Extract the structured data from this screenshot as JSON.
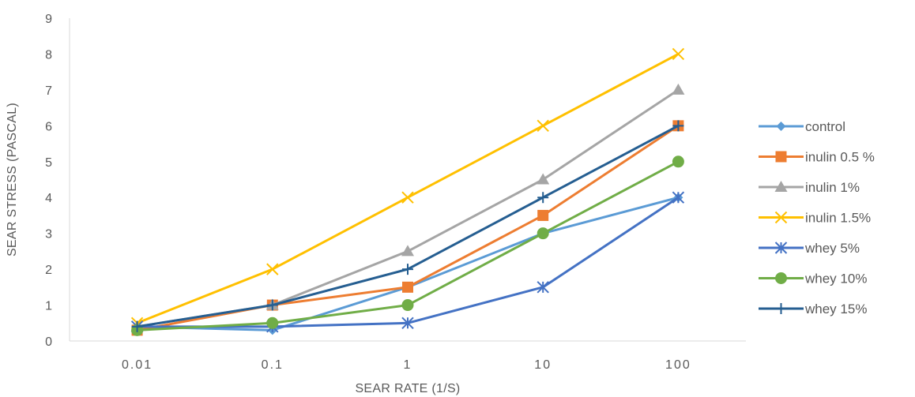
{
  "chart_data": {
    "type": "line",
    "title": "",
    "xlabel": "SEAR RATE (1/S)",
    "ylabel": "SEAR STRESS (PASCAL)",
    "categories": [
      "0.01",
      "0.1",
      "1",
      "10",
      "100"
    ],
    "ylim": [
      0,
      9
    ],
    "yticks": [
      0,
      1,
      2,
      3,
      4,
      5,
      6,
      7,
      8,
      9
    ],
    "grid": false,
    "legend_position": "right",
    "series": [
      {
        "name": "control",
        "color": "#5B9BD5",
        "marker": "diamond",
        "values": [
          0.4,
          0.3,
          1.5,
          3,
          4
        ]
      },
      {
        "name": "inulin 0.5 %",
        "color": "#ED7D31",
        "marker": "square",
        "values": [
          0.3,
          1,
          1.5,
          3.5,
          6
        ]
      },
      {
        "name": "inulin 1%",
        "color": "#A5A5A5",
        "marker": "triangle",
        "values": [
          0.4,
          1,
          2.5,
          4.5,
          7
        ]
      },
      {
        "name": "inulin 1.5%",
        "color": "#FFC000",
        "marker": "x",
        "values": [
          0.5,
          2,
          4,
          6,
          8
        ]
      },
      {
        "name": "whey 5%",
        "color": "#4472C4",
        "marker": "star",
        "values": [
          0.4,
          0.4,
          0.5,
          1.5,
          4
        ]
      },
      {
        "name": "whey 10%",
        "color": "#70AD47",
        "marker": "circle",
        "values": [
          0.3,
          0.5,
          1,
          3,
          5
        ]
      },
      {
        "name": "whey 15%",
        "color": "#255E91",
        "marker": "plus",
        "values": [
          0.4,
          1,
          2,
          4,
          6
        ]
      }
    ]
  }
}
